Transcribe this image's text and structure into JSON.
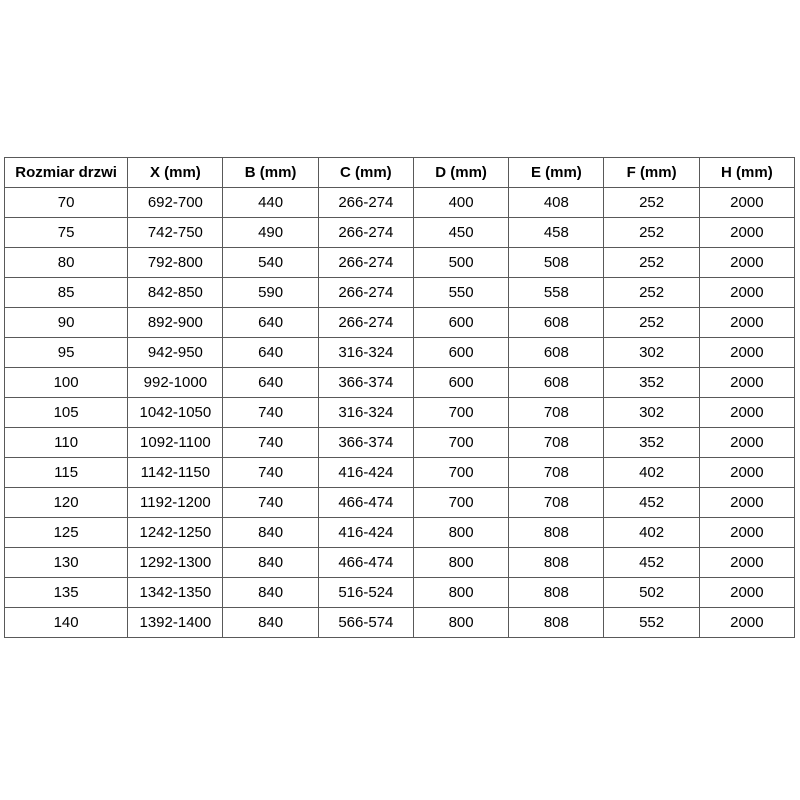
{
  "chart_data": {
    "type": "table",
    "title": "",
    "headers": [
      "Rozmiar drzwi",
      "X (mm)",
      "B (mm)",
      "C (mm)",
      "D (mm)",
      "E (mm)",
      "F (mm)",
      "H (mm)"
    ],
    "rows": [
      [
        "70",
        "692-700",
        "440",
        "266-274",
        "400",
        "408",
        "252",
        "2000"
      ],
      [
        "75",
        "742-750",
        "490",
        "266-274",
        "450",
        "458",
        "252",
        "2000"
      ],
      [
        "80",
        "792-800",
        "540",
        "266-274",
        "500",
        "508",
        "252",
        "2000"
      ],
      [
        "85",
        "842-850",
        "590",
        "266-274",
        "550",
        "558",
        "252",
        "2000"
      ],
      [
        "90",
        "892-900",
        "640",
        "266-274",
        "600",
        "608",
        "252",
        "2000"
      ],
      [
        "95",
        "942-950",
        "640",
        "316-324",
        "600",
        "608",
        "302",
        "2000"
      ],
      [
        "100",
        "992-1000",
        "640",
        "366-374",
        "600",
        "608",
        "352",
        "2000"
      ],
      [
        "105",
        "1042-1050",
        "740",
        "316-324",
        "700",
        "708",
        "302",
        "2000"
      ],
      [
        "110",
        "1092-1100",
        "740",
        "366-374",
        "700",
        "708",
        "352",
        "2000"
      ],
      [
        "115",
        "1142-1150",
        "740",
        "416-424",
        "700",
        "708",
        "402",
        "2000"
      ],
      [
        "120",
        "1192-1200",
        "740",
        "466-474",
        "700",
        "708",
        "452",
        "2000"
      ],
      [
        "125",
        "1242-1250",
        "840",
        "416-424",
        "800",
        "808",
        "402",
        "2000"
      ],
      [
        "130",
        "1292-1300",
        "840",
        "466-474",
        "800",
        "808",
        "452",
        "2000"
      ],
      [
        "135",
        "1342-1350",
        "840",
        "516-524",
        "800",
        "808",
        "502",
        "2000"
      ],
      [
        "140",
        "1392-1400",
        "840",
        "566-574",
        "800",
        "808",
        "552",
        "2000"
      ]
    ],
    "layout": {
      "border_color": "#595959",
      "text_color": "#000000",
      "background_color": "#ffffff",
      "header_bold": true
    }
  }
}
